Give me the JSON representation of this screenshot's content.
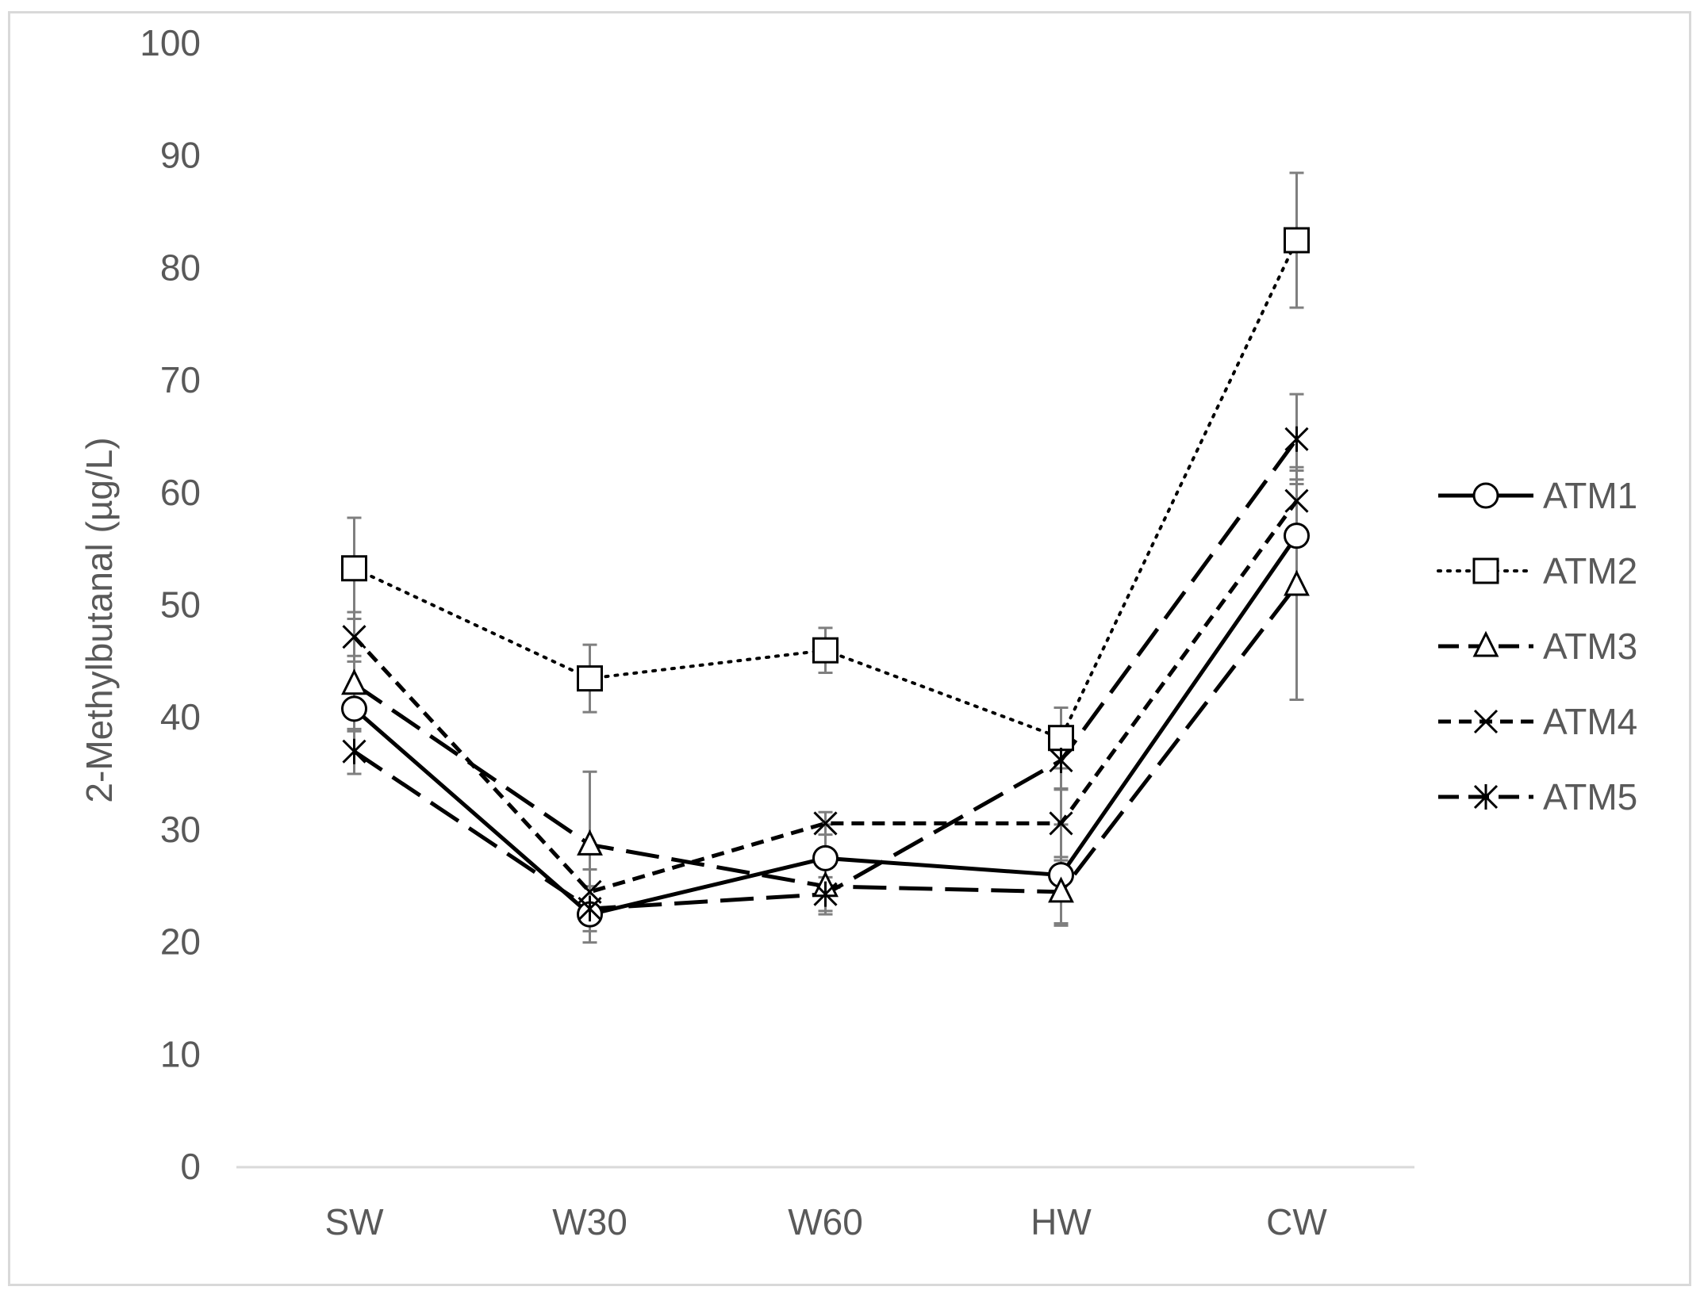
{
  "chart_data": {
    "type": "line",
    "title": "",
    "xlabel": "",
    "ylabel": "2-Methylbutanal (µg/L)",
    "categories": [
      "SW",
      "W30",
      "W60",
      "HW",
      "CW"
    ],
    "ylim": [
      0,
      100
    ],
    "yticks": [
      0,
      10,
      20,
      30,
      40,
      50,
      60,
      70,
      80,
      90,
      100
    ],
    "grid": false,
    "legend_position": "right",
    "series": [
      {
        "name": "ATM1",
        "marker": "circle",
        "dash": "solid",
        "values": [
          40.8,
          22.5,
          27.5,
          26.0,
          56.2
        ],
        "errors": [
          2.0,
          2.5,
          3.0,
          4.5,
          5.0
        ]
      },
      {
        "name": "ATM2",
        "marker": "square",
        "dash": "dotted",
        "values": [
          53.3,
          43.5,
          46.0,
          38.2,
          82.5
        ],
        "errors": [
          4.5,
          3.0,
          2.0,
          2.7,
          6.0
        ]
      },
      {
        "name": "ATM3",
        "marker": "triangle",
        "dash": "longdash",
        "values": [
          43.0,
          28.7,
          25.0,
          24.5,
          51.8
        ],
        "errors": [
          2.5,
          6.5,
          2.5,
          2.8,
          10.2
        ]
      },
      {
        "name": "ATM4",
        "marker": "x",
        "dash": "shortdash",
        "values": [
          47.2,
          24.5,
          30.6,
          30.6,
          59.3
        ],
        "errors": [
          2.2,
          2.0,
          1.0,
          3.0,
          3.0
        ]
      },
      {
        "name": "ATM5",
        "marker": "star",
        "dash": "longdash",
        "values": [
          37.0,
          23.0,
          24.3,
          36.2,
          64.8
        ],
        "errors": [
          2.0,
          2.0,
          1.5,
          2.5,
          4.0
        ]
      }
    ]
  }
}
